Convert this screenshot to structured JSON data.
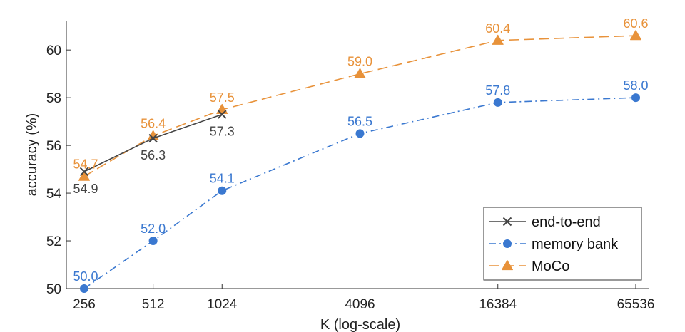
{
  "chart_data": {
    "type": "line",
    "title": "",
    "xlabel": "K (log-scale)",
    "ylabel": "accuracy (%)",
    "x_scale": "log2",
    "x_ticks": [
      256,
      512,
      1024,
      4096,
      16384,
      65536
    ],
    "x_tick_labels": [
      "256",
      "512",
      "1024",
      "4096",
      "16384",
      "65536"
    ],
    "y_ticks": [
      50,
      52,
      54,
      56,
      58,
      60
    ],
    "y_tick_labels": [
      "50",
      "52",
      "54",
      "56",
      "58",
      "60"
    ],
    "ylim": [
      50,
      61.2
    ],
    "xlim": [
      256,
      65536
    ],
    "grid": false,
    "legend_position": "bottom-right",
    "series": [
      {
        "name": "end-to-end",
        "color": "#444444",
        "line_style": "solid",
        "marker": "x",
        "label_position": "below",
        "x": [
          256,
          512,
          1024
        ],
        "values": [
          54.9,
          56.3,
          57.3
        ],
        "labels": [
          "54.9",
          "56.3",
          "57.3"
        ]
      },
      {
        "name": "memory bank",
        "color": "#3a78d0",
        "line_style": "dash-dot",
        "marker": "circle",
        "label_position": "above",
        "x": [
          256,
          512,
          1024,
          4096,
          16384,
          65536
        ],
        "values": [
          50.0,
          52.0,
          54.1,
          56.5,
          57.8,
          58.0
        ],
        "labels": [
          "50.0",
          "52.0",
          "54.1",
          "56.5",
          "57.8",
          "58.0"
        ]
      },
      {
        "name": "MoCo",
        "color": "#e8923a",
        "line_style": "dashed",
        "marker": "triangle",
        "label_position": "above",
        "x": [
          256,
          512,
          1024,
          4096,
          16384,
          65536
        ],
        "values": [
          54.7,
          56.4,
          57.5,
          59.0,
          60.4,
          60.6
        ],
        "labels": [
          "54.7",
          "56.4",
          "57.5",
          "59.0",
          "60.4",
          "60.6"
        ]
      }
    ]
  }
}
